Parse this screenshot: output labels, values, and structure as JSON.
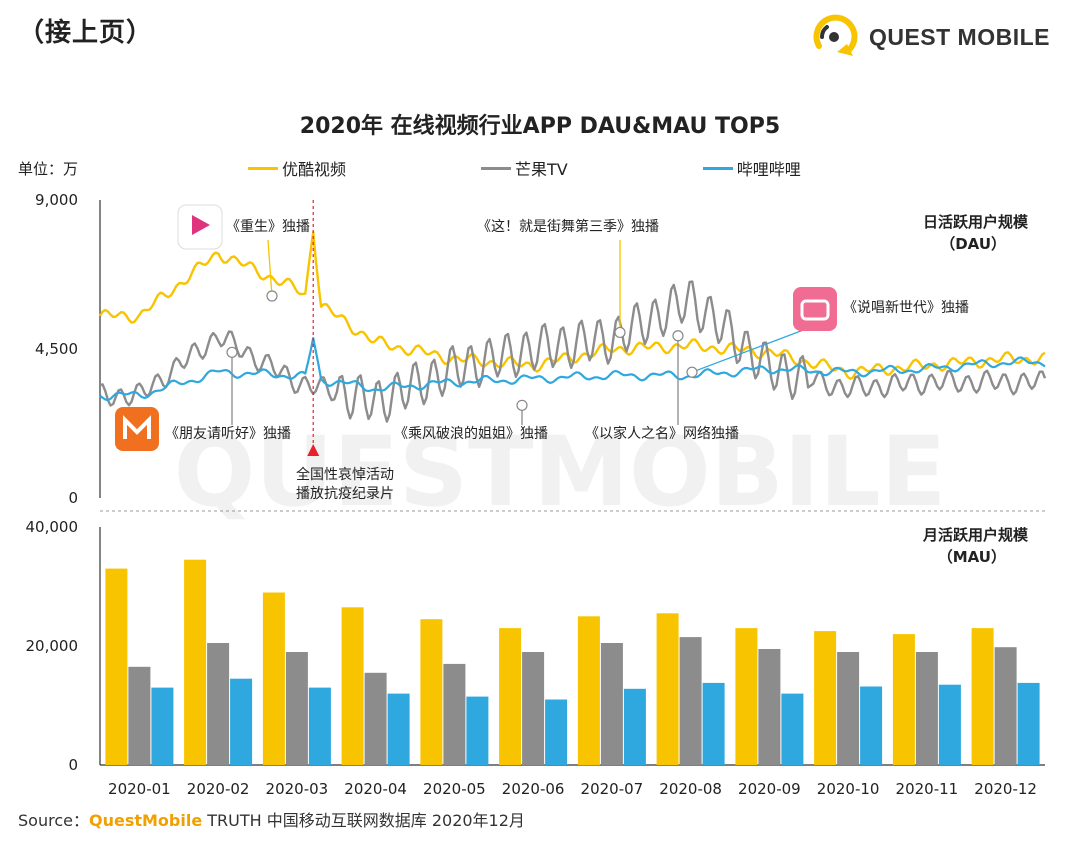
{
  "header": {
    "page_label": "（接上页）"
  },
  "logo": {
    "text": "QUEST MOBILE"
  },
  "watermark": "QUESTMOBILE",
  "unit": "单位：万",
  "colors": {
    "youku": "#f8c400",
    "mango": "#8c8c8c",
    "bilibili": "#2ea8df",
    "marker": "#e8202a"
  },
  "source": {
    "prefix": "Source：",
    "brand": "QuestMobile",
    "suffix": " TRUTH 中国移动互联网数据库 2020年12月"
  },
  "chart_data": [
    {
      "type": "line",
      "title": "2020年 在线视频行业APP DAU&MAU TOP5",
      "panel_label": "日活跃用户规模",
      "panel_unit": "（DAU）",
      "ylim": [
        0,
        9000
      ],
      "y_ticks": [
        "9,000",
        "4,500",
        "0"
      ],
      "x": [
        "2020-01",
        "2020-02",
        "2020-03",
        "2020-04",
        "2020-05",
        "2020-06",
        "2020-07",
        "2020-08",
        "2020-09",
        "2020-10",
        "2020-11",
        "2020-12"
      ],
      "series": [
        {
          "name": "优酷视频",
          "color": "#f8c400",
          "values": [
            5500,
            7400,
            6300,
            4700,
            4200,
            4000,
            4500,
            4600,
            4400,
            3800,
            4000,
            4200
          ]
        },
        {
          "name": "芒果TV",
          "color": "#8c8c8c",
          "values": [
            3100,
            4900,
            3500,
            2900,
            3900,
            4500,
            4800,
            6000,
            3900,
            3300,
            3500,
            3500
          ]
        },
        {
          "name": "哔哩哔哩",
          "color": "#2ea8df",
          "values": [
            3100,
            3800,
            3700,
            3300,
            3500,
            3600,
            3700,
            3700,
            3900,
            3800,
            3900,
            4100
          ]
        }
      ],
      "annotations": [
        {
          "text": "《重生》独播",
          "series": "优酷视频",
          "value": 6100
        },
        {
          "text": "《朋友请听好》独播",
          "series": "芒果TV",
          "value": 4400
        },
        {
          "text": "全国性哀悼活动",
          "text2": "播放抗疫纪录片"
        },
        {
          "text": "《乘风破浪的姐姐》独播",
          "series": "芒果TV",
          "value": 2800
        },
        {
          "text": "《这！就是街舞第三季》独播",
          "series": "优酷视频",
          "value": 5000
        },
        {
          "text": "《以家人之名》网络独播",
          "series": "芒果TV",
          "value": 4900
        },
        {
          "text": "《说唱新世代》独播",
          "series": "哔哩哔哩",
          "value": 3800
        }
      ]
    },
    {
      "type": "bar",
      "panel_label": "月活跃用户规模",
      "panel_unit": "（MAU）",
      "ylim": [
        0,
        40000
      ],
      "y_ticks": [
        "40,000",
        "20,000",
        "0"
      ],
      "categories": [
        "2020-01",
        "2020-02",
        "2020-03",
        "2020-04",
        "2020-05",
        "2020-06",
        "2020-07",
        "2020-08",
        "2020-09",
        "2020-10",
        "2020-11",
        "2020-12"
      ],
      "series": [
        {
          "name": "优酷视频",
          "color": "#f8c400",
          "values": [
            33000,
            34500,
            29000,
            26500,
            24500,
            23000,
            25000,
            25500,
            23000,
            22500,
            22000,
            23000
          ]
        },
        {
          "name": "芒果TV",
          "color": "#8c8c8c",
          "values": [
            16500,
            20500,
            19000,
            15500,
            17000,
            19000,
            20500,
            21500,
            19500,
            19000,
            19000,
            19800
          ]
        },
        {
          "name": "哔哩哔哩",
          "color": "#2ea8df",
          "values": [
            13000,
            14500,
            13000,
            12000,
            11500,
            11000,
            12800,
            13800,
            12000,
            13200,
            13500,
            13800
          ]
        }
      ]
    }
  ]
}
